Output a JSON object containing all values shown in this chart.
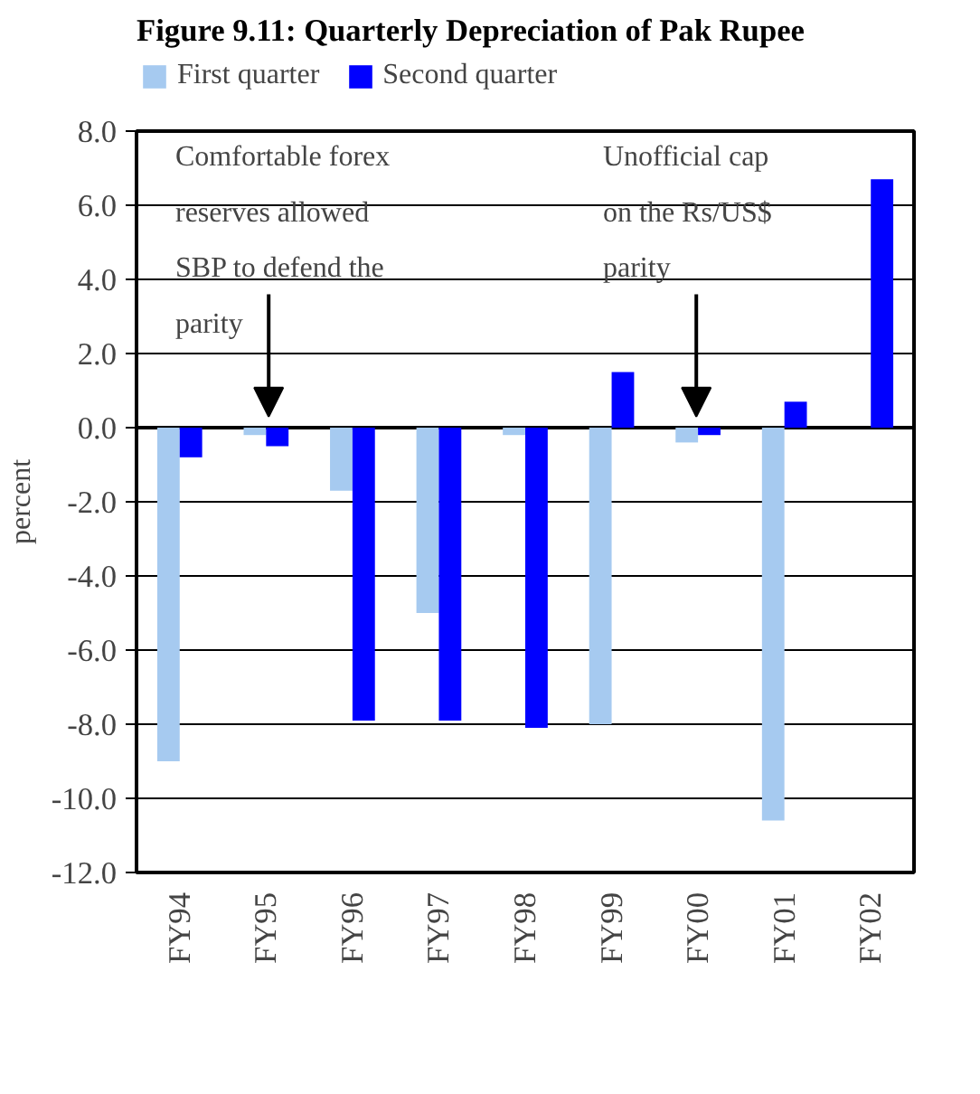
{
  "chart_data": {
    "type": "bar",
    "title": "Figure 9.11: Quarterly Depreciation of Pak Rupee",
    "ylabel": "percent",
    "categories": [
      "FY94",
      "FY95",
      "FY96",
      "FY97",
      "FY98",
      "FY99",
      "FY00",
      "FY01",
      "FY02"
    ],
    "series": [
      {
        "name": "First quarter",
        "color": "#a6caf0",
        "values": [
          -9.0,
          -0.2,
          -1.7,
          -5.0,
          -0.2,
          -8.0,
          -0.4,
          -10.6,
          0
        ]
      },
      {
        "name": "Second quarter",
        "color": "#0000ff",
        "values": [
          -0.8,
          -0.5,
          -7.9,
          -7.9,
          -8.1,
          1.5,
          -0.2,
          0.7,
          6.7
        ]
      }
    ],
    "ylim": [
      -12,
      8
    ],
    "yticks": [
      {
        "value": -12,
        "label": "-12.0"
      },
      {
        "value": -10,
        "label": "-10.0"
      },
      {
        "value": -8,
        "label": "-8.0"
      },
      {
        "value": -6,
        "label": "-6.0"
      },
      {
        "value": -4,
        "label": "-4.0"
      },
      {
        "value": -2,
        "label": "-2.0"
      },
      {
        "value": 0,
        "label": "0.0"
      },
      {
        "value": 2,
        "label": "2.0"
      },
      {
        "value": 4,
        "label": "4.0"
      },
      {
        "value": 6,
        "label": "6.0"
      },
      {
        "value": 8,
        "label": "8.0"
      }
    ],
    "grid": "y",
    "legend": "top",
    "annotations": [
      "Comfortable forex reserves allowed SBP to defend the parity",
      "Unofficial cap on the Rs/US$ parity"
    ]
  }
}
